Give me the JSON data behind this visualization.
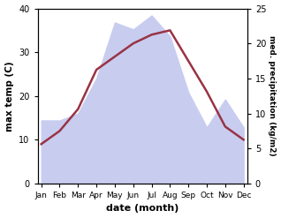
{
  "months": [
    "Jan",
    "Feb",
    "Mar",
    "Apr",
    "May",
    "Jun",
    "Jul",
    "Aug",
    "Sep",
    "Oct",
    "Nov",
    "Dec"
  ],
  "month_positions": [
    0,
    1,
    2,
    3,
    4,
    5,
    6,
    7,
    8,
    9,
    10,
    11
  ],
  "temp_max": [
    9,
    12,
    17,
    26,
    29,
    32,
    34,
    35,
    28,
    21,
    13,
    10
  ],
  "precipitation": [
    9,
    9,
    10,
    15,
    23,
    22,
    24,
    21,
    13,
    8,
    12,
    8
  ],
  "temp_color": "#993344",
  "precip_fill_color": "#c8cdf0",
  "ylabel_left": "max temp (C)",
  "ylabel_right": "med. precipitation (kg/m2)",
  "xlabel": "date (month)",
  "ylim_left": [
    0,
    40
  ],
  "ylim_right": [
    0,
    25
  ],
  "yticks_left": [
    0,
    10,
    20,
    30,
    40
  ],
  "yticks_right": [
    0,
    5,
    10,
    15,
    20,
    25
  ]
}
